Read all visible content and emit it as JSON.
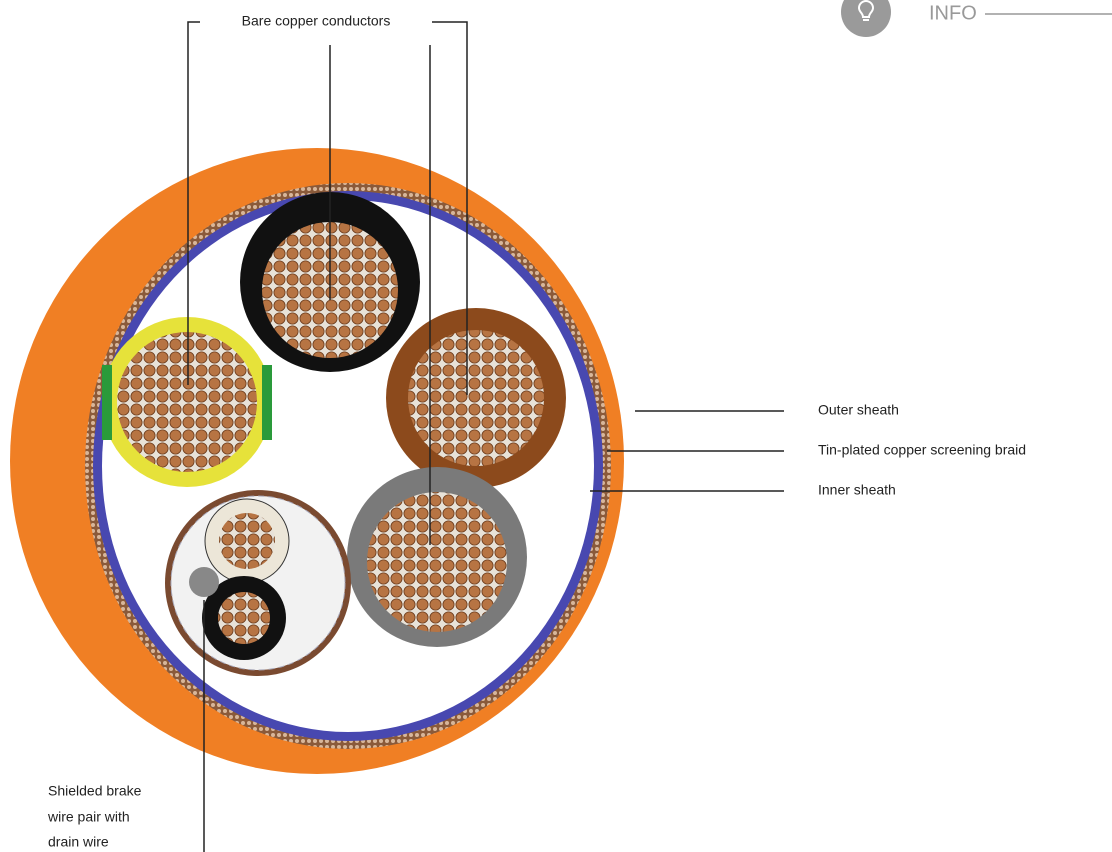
{
  "labels": {
    "conductors": "Bare copper conductors",
    "outer_sheath": "Outer sheath",
    "braid": "Tin-plated copper screening braid",
    "inner_sheath": "Inner sheath",
    "brake_pair": [
      "Shielded brake",
      "wire pair with",
      "drain wire"
    ]
  },
  "info": "INFO"
}
